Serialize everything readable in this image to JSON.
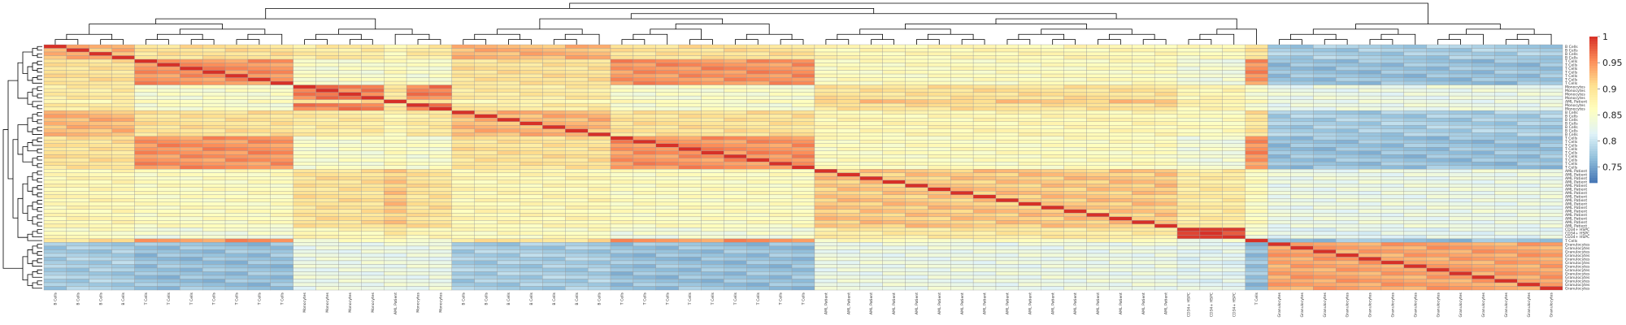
{
  "chart_data": {
    "type": "heatmap",
    "title": "",
    "xlabel": "",
    "ylabel": "",
    "labels": [
      "B Cells",
      "B Cells",
      "B Cells",
      "B Cells",
      "T Cells",
      "T Cells",
      "T Cells",
      "T Cells",
      "T Cells",
      "T Cells",
      "T Cells",
      "Monocytes",
      "Monocytes",
      "Monocytes",
      "Monocytes",
      "AML Patient",
      "Monocytes",
      "Monocytes",
      "B Cells",
      "B Cells",
      "B Cells",
      "B Cells",
      "B Cells",
      "B Cells",
      "B Cells",
      "T Cells",
      "T Cells",
      "T Cells",
      "T Cells",
      "T Cells",
      "T Cells",
      "T Cells",
      "T Cells",
      "T Cells",
      "AML Patient",
      "AML Patient",
      "AML Patient",
      "AML Patient",
      "AML Patient",
      "AML Patient",
      "AML Patient",
      "AML Patient",
      "AML Patient",
      "AML Patient",
      "AML Patient",
      "AML Patient",
      "AML Patient",
      "AML Patient",
      "AML Patient",
      "AML Patient",
      "CD34+ HSPC",
      "CD34+ HSPC",
      "CD34+ HSPC",
      "T Cells",
      "Granulocytes",
      "Granulocytes",
      "Granulocytes",
      "Granulocytes",
      "Granulocytes",
      "Granulocytes",
      "Granulocytes",
      "Granulocytes",
      "Granulocytes",
      "Granulocytes",
      "Granulocytes",
      "Granulocytes",
      "Granulocytes"
    ],
    "group_order": [
      "B Cells",
      "T Cells",
      "Monocytes",
      "AML Patient",
      "CD34+ HSPC",
      "Granulocytes"
    ],
    "similarity_by_group": {
      "columns": [
        "B Cells",
        "T Cells",
        "Monocytes",
        "AML Patient",
        "CD34+ HSPC",
        "Granulocytes"
      ],
      "rows": [
        [
          0.93,
          0.9,
          0.89,
          0.87,
          0.86,
          0.78
        ],
        [
          0.9,
          0.95,
          0.85,
          0.86,
          0.84,
          0.77
        ],
        [
          0.89,
          0.85,
          0.96,
          0.9,
          0.87,
          0.83
        ],
        [
          0.87,
          0.86,
          0.9,
          0.92,
          0.89,
          0.83
        ],
        [
          0.86,
          0.84,
          0.87,
          0.89,
          0.99,
          0.82
        ],
        [
          0.78,
          0.77,
          0.83,
          0.83,
          0.82,
          0.94
        ]
      ]
    },
    "diagonal_value": 1,
    "color_scale": {
      "min": 0.72,
      "max": 1.0,
      "ticks": [
        0.75,
        0.8,
        0.85,
        0.9,
        0.95,
        1
      ],
      "colors": [
        "#4575b4",
        "#91bfdb",
        "#e0f3f8",
        "#ffffbf",
        "#fee090",
        "#fc8d59",
        "#d73027"
      ]
    },
    "dendrogram": {
      "rows": true,
      "columns": true
    },
    "legend_position": "right"
  }
}
